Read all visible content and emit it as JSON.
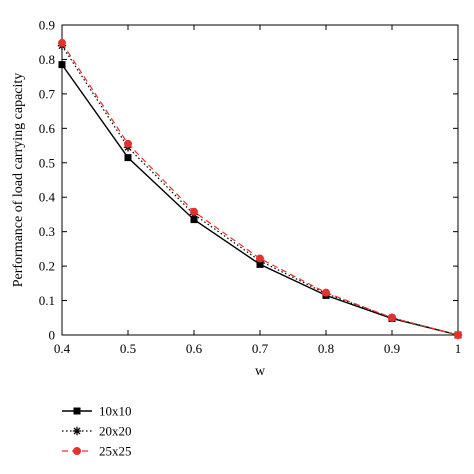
{
  "chart_data": {
    "type": "line",
    "title": "",
    "xlabel": "w",
    "ylabel": "Performance of load carrying capacity",
    "xlim": [
      0.4,
      1.0
    ],
    "ylim": [
      0,
      0.9
    ],
    "xticks": [
      0.4,
      0.5,
      0.6,
      0.7,
      0.8,
      0.9,
      1.0
    ],
    "xtick_labels": [
      "0.4",
      "0.5",
      "0.6",
      "0.7",
      "0.8",
      "0.9",
      "1"
    ],
    "yticks": [
      0,
      0.1,
      0.2,
      0.3,
      0.4,
      0.5,
      0.6,
      0.7,
      0.8,
      0.9
    ],
    "ytick_labels": [
      "0",
      "0.1",
      "0.2",
      "0.3",
      "0.4",
      "0.5",
      "0.6",
      "0.7",
      "0.8",
      "0.9"
    ],
    "grid": false,
    "legend_position": "bottom-left",
    "x": [
      0.4,
      0.5,
      0.6,
      0.7,
      0.8,
      0.9,
      1.0
    ],
    "series": [
      {
        "name": "10x10",
        "values": [
          0.785,
          0.515,
          0.335,
          0.205,
          0.115,
          0.048,
          0.0
        ],
        "color": "#000000",
        "line_style": "solid",
        "marker": "square"
      },
      {
        "name": "20x20",
        "values": [
          0.84,
          0.545,
          0.35,
          0.215,
          0.12,
          0.05,
          0.0
        ],
        "color": "#000000",
        "line_style": "dotted",
        "marker": "star"
      },
      {
        "name": "25x25",
        "values": [
          0.848,
          0.555,
          0.358,
          0.222,
          0.123,
          0.05,
          0.0
        ],
        "color": "#e4322b",
        "line_style": "dashed",
        "marker": "circle"
      }
    ]
  }
}
